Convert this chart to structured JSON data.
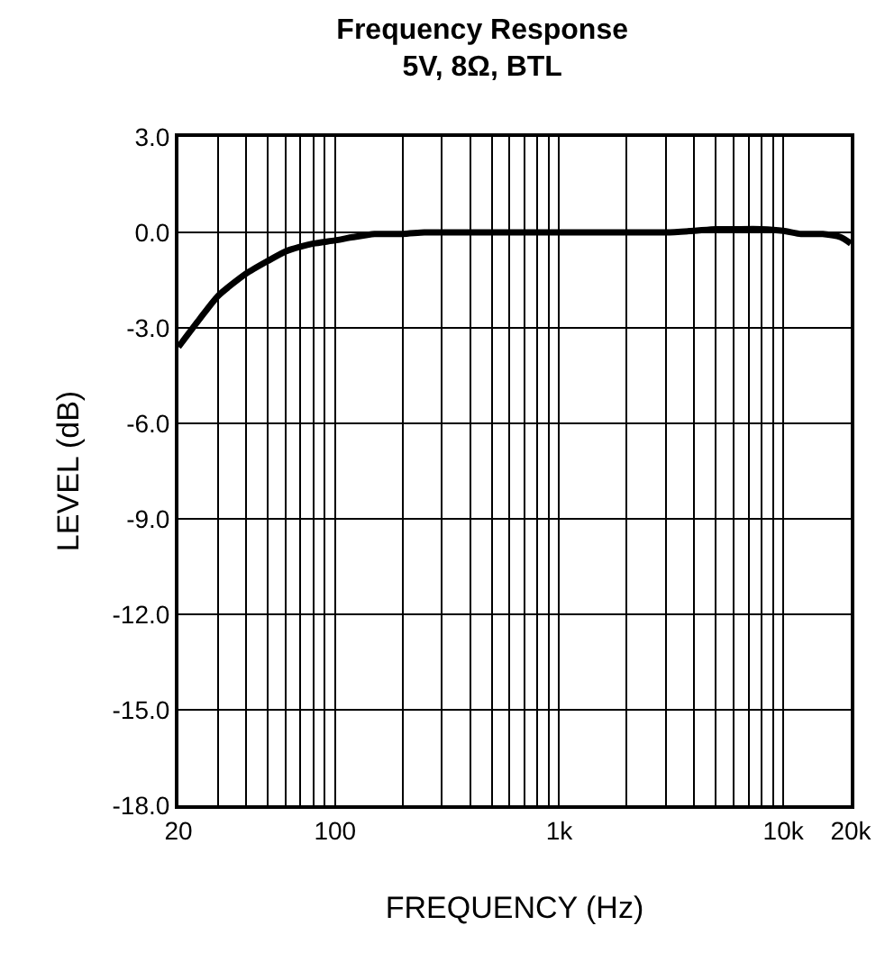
{
  "chart_data": {
    "type": "line",
    "title": "Frequency Response",
    "subtitle": "5V, 8Ω, BTL",
    "xlabel": "FREQUENCY (Hz)",
    "ylabel": "LEVEL (dB)",
    "log": "x",
    "x": [
      20,
      25,
      30,
      40,
      50,
      60,
      70,
      80,
      100,
      120,
      150,
      200,
      250,
      300,
      500,
      1000,
      2000,
      3000,
      4000,
      5000,
      6000,
      8000,
      10000,
      12000,
      15000,
      18000,
      20000
    ],
    "series": [
      {
        "color": "#000000",
        "values": [
          -3.6,
          -2.7,
          -2.0,
          -1.3,
          -0.9,
          -0.6,
          -0.45,
          -0.35,
          -0.25,
          -0.15,
          -0.05,
          -0.05,
          0,
          0,
          0,
          0,
          0,
          0,
          0.05,
          0.1,
          0.1,
          0.1,
          0.05,
          -0.05,
          -0.05,
          -0.15,
          -0.35
        ]
      }
    ],
    "xlim": [
      20,
      20000
    ],
    "xticks": [
      20,
      {
        "value": 30,
        "label": null
      },
      {
        "value": 40,
        "label": null
      },
      {
        "value": 50,
        "label": null
      },
      {
        "value": 60,
        "label": null
      },
      {
        "value": 70,
        "label": null
      },
      {
        "value": 80,
        "label": null
      },
      {
        "value": 90,
        "label": null
      },
      100,
      {
        "value": 200,
        "label": null
      },
      {
        "value": 300,
        "label": null
      },
      {
        "value": 400,
        "label": null
      },
      {
        "value": 500,
        "label": null
      },
      {
        "value": 600,
        "label": null
      },
      {
        "value": 700,
        "label": null
      },
      {
        "value": 800,
        "label": null
      },
      {
        "value": 900,
        "label": null
      },
      {
        "value": 1000,
        "label": "1k"
      },
      {
        "value": 2000,
        "label": null
      },
      {
        "value": 3000,
        "label": null
      },
      {
        "value": 4000,
        "label": null
      },
      {
        "value": 5000,
        "label": null
      },
      {
        "value": 6000,
        "label": null
      },
      {
        "value": 7000,
        "label": null
      },
      {
        "value": 8000,
        "label": null
      },
      {
        "value": 9000,
        "label": null
      },
      {
        "value": 10000,
        "label": "10k"
      },
      {
        "value": 20000,
        "label": "20k"
      }
    ],
    "ylim": [
      -18,
      3
    ],
    "yticks": [
      {
        "value": -18,
        "label": "-18.0"
      },
      {
        "value": -15,
        "label": "-15.0"
      },
      {
        "value": -12,
        "label": "-12.0"
      },
      {
        "value": -9,
        "label": "-9.0"
      },
      {
        "value": -6,
        "label": "-6.0"
      },
      {
        "value": -3,
        "label": "-3.0"
      },
      {
        "value": 0,
        "label": "0.0"
      },
      {
        "value": 3,
        "label": "3.0"
      }
    ],
    "grid": true,
    "line_style": "solid",
    "marker": "none"
  }
}
